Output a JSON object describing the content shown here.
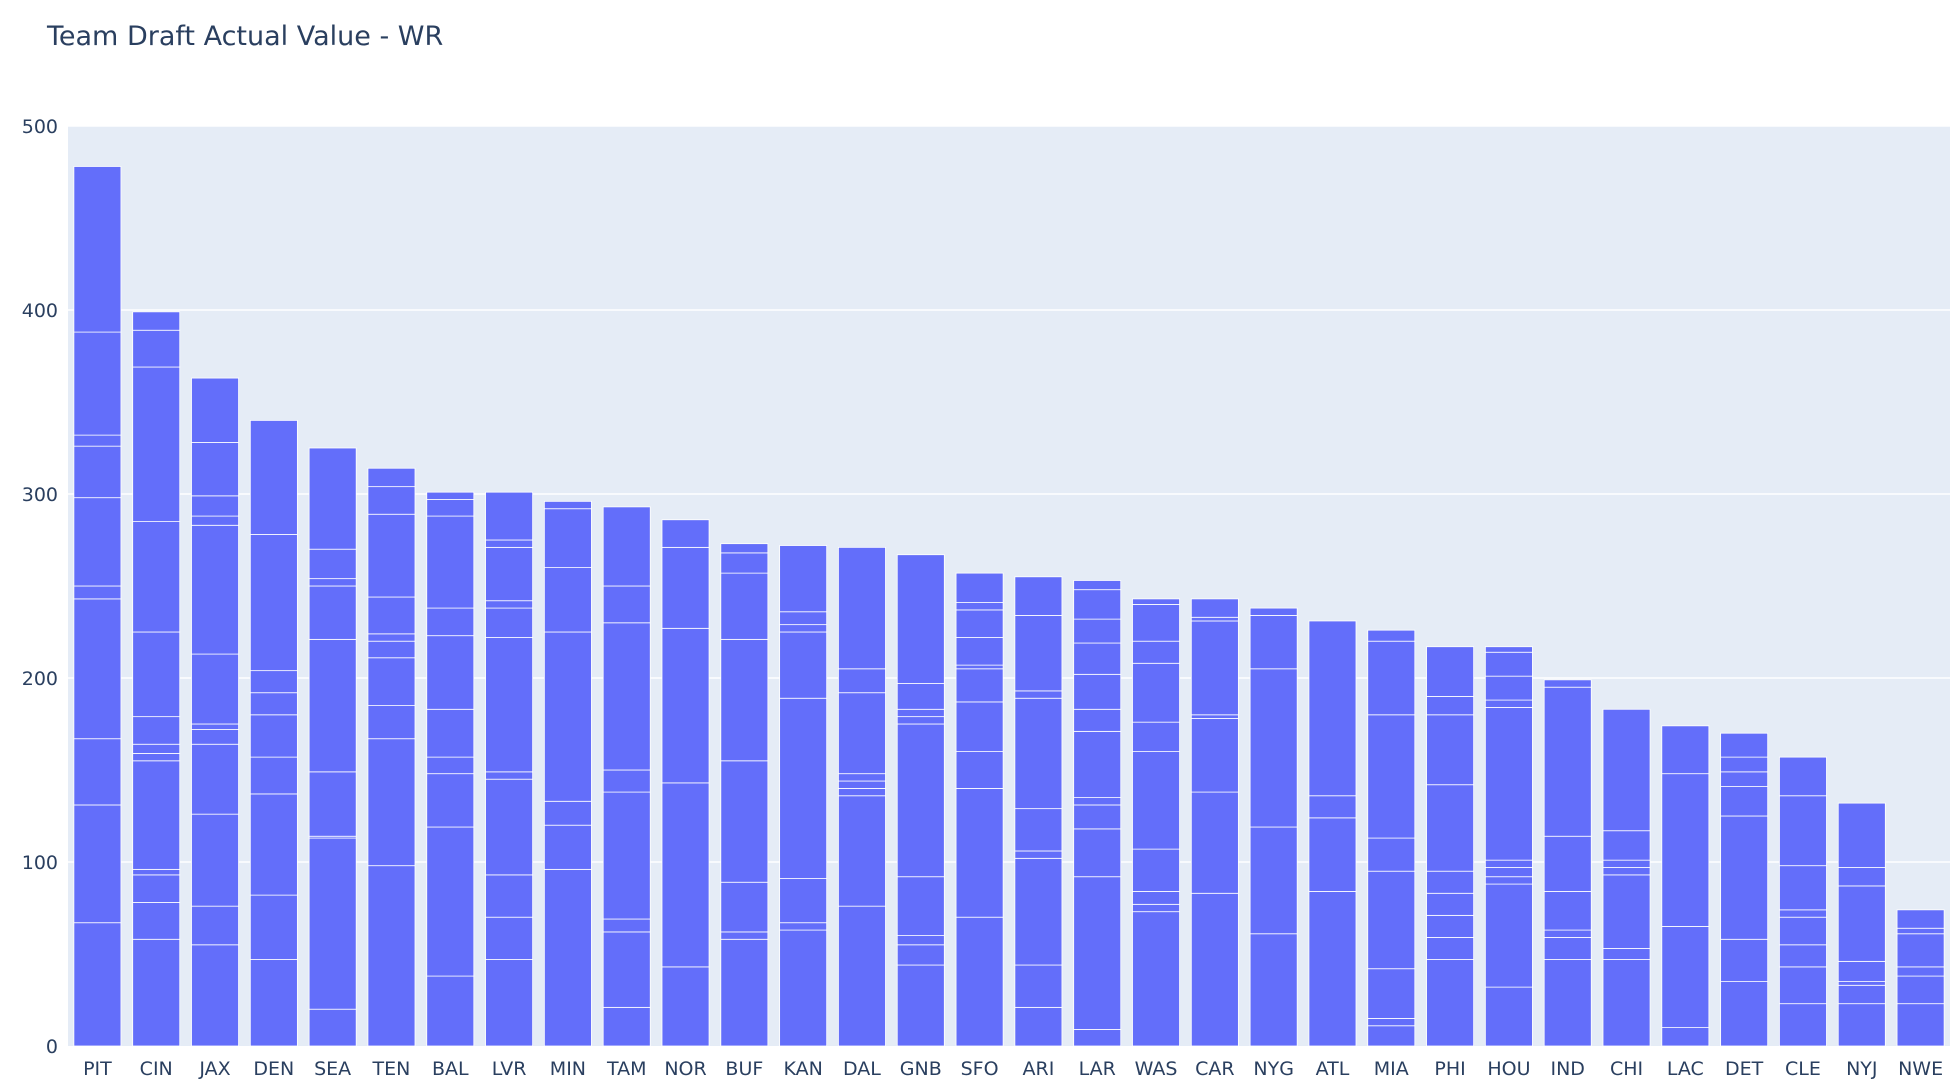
{
  "chart_data": {
    "type": "bar",
    "stacked": true,
    "title": "Team Draft Actual Value - WR",
    "xlabel": "",
    "ylabel": "",
    "ylim": [
      0,
      500
    ],
    "yticks": [
      0,
      100,
      200,
      300,
      400,
      500
    ],
    "grid": true,
    "colors": {
      "bar": "#636efa",
      "segment_divider": "#ffffff",
      "plot_bg": "#e5ecf6",
      "text": "#2a3f5f"
    },
    "categories": [
      "PIT",
      "CIN",
      "JAX",
      "DEN",
      "SEA",
      "TEN",
      "BAL",
      "LVR",
      "MIN",
      "TAM",
      "NOR",
      "BUF",
      "KAN",
      "DAL",
      "GNB",
      "SFO",
      "ARI",
      "LAR",
      "WAS",
      "CAR",
      "NYG",
      "ATL",
      "MIA",
      "PHI",
      "HOU",
      "IND",
      "CHI",
      "LAC",
      "DET",
      "CLE",
      "NYJ",
      "NWE"
    ],
    "segment_boundaries": [
      [
        67,
        131,
        167,
        243,
        250,
        298,
        326,
        332,
        388,
        478
      ],
      [
        58,
        78,
        93,
        96,
        155,
        159,
        164,
        179,
        225,
        285,
        369,
        389,
        399
      ],
      [
        55,
        76,
        126,
        164,
        172,
        175,
        213,
        283,
        288,
        299,
        328,
        363
      ],
      [
        47,
        82,
        137,
        157,
        180,
        192,
        204,
        278,
        340
      ],
      [
        20,
        113,
        114,
        149,
        221,
        250,
        254,
        270,
        325
      ],
      [
        98,
        167,
        185,
        211,
        220,
        224,
        244,
        289,
        304,
        314
      ],
      [
        38,
        119,
        148,
        157,
        183,
        223,
        238,
        288,
        297,
        301
      ],
      [
        47,
        70,
        93,
        145,
        149,
        222,
        238,
        242,
        271,
        275,
        301
      ],
      [
        96,
        120,
        133,
        225,
        260,
        292,
        296
      ],
      [
        21,
        62,
        69,
        138,
        150,
        230,
        250,
        293
      ],
      [
        43,
        143,
        227,
        271,
        286
      ],
      [
        58,
        62,
        89,
        155,
        221,
        257,
        268,
        273
      ],
      [
        63,
        67,
        91,
        189,
        225,
        229,
        236,
        272
      ],
      [
        76,
        136,
        140,
        144,
        148,
        192,
        205,
        271
      ],
      [
        44,
        55,
        60,
        92,
        175,
        179,
        183,
        197,
        267
      ],
      [
        70,
        140,
        160,
        187,
        205,
        207,
        222,
        237,
        241,
        257
      ],
      [
        21,
        44,
        102,
        106,
        129,
        189,
        193,
        234,
        255
      ],
      [
        9,
        92,
        118,
        131,
        135,
        171,
        183,
        202,
        219,
        232,
        248,
        253
      ],
      [
        73,
        77,
        84,
        107,
        160,
        176,
        208,
        220,
        240,
        243
      ],
      [
        83,
        138,
        178,
        180,
        231,
        233,
        243
      ],
      [
        61,
        119,
        205,
        234,
        238
      ],
      [
        84,
        124,
        136,
        231
      ],
      [
        11,
        15,
        42,
        95,
        113,
        180,
        220,
        226
      ],
      [
        47,
        59,
        71,
        83,
        95,
        142,
        180,
        190,
        217
      ],
      [
        32,
        88,
        92,
        97,
        101,
        184,
        188,
        201,
        214,
        217
      ],
      [
        47,
        59,
        63,
        84,
        114,
        195,
        199
      ],
      [
        47,
        53,
        93,
        97,
        101,
        117,
        183
      ],
      [
        10,
        65,
        148,
        174
      ],
      [
        35,
        58,
        125,
        141,
        149,
        157,
        170
      ],
      [
        23,
        43,
        55,
        70,
        74,
        98,
        136,
        157
      ],
      [
        23,
        33,
        35,
        46,
        87,
        97,
        132
      ],
      [
        23,
        38,
        43,
        61,
        64,
        74
      ]
    ],
    "values": [
      478,
      399,
      363,
      340,
      325,
      314,
      301,
      301,
      296,
      293,
      286,
      273,
      272,
      271,
      267,
      257,
      255,
      253,
      243,
      243,
      238,
      231,
      226,
      217,
      217,
      199,
      183,
      174,
      170,
      157,
      132,
      74
    ]
  }
}
